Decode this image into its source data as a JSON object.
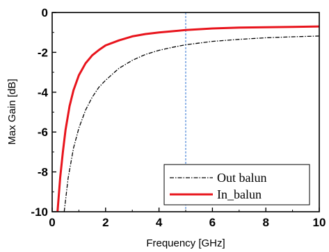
{
  "chart_data": {
    "type": "line",
    "xlabel": "Frequency [GHz]",
    "ylabel": "Max Gain [dB]",
    "xlim": [
      0,
      10
    ],
    "ylim": [
      -10,
      0
    ],
    "xticks": [
      0,
      2,
      4,
      6,
      8,
      10
    ],
    "yticks": [
      0,
      -2,
      -4,
      -6,
      -8,
      -10
    ],
    "xtick_labels": [
      "0",
      "2",
      "4",
      "6",
      "8",
      "10"
    ],
    "ytick_labels": [
      "0",
      "-2",
      "-4",
      "-6",
      "-8",
      "-10"
    ],
    "grid": false,
    "legend_position": "bottom-right",
    "reference_line_x": 5,
    "series": [
      {
        "name": "Out balun",
        "style": "dash-dot",
        "color": "#000000",
        "x": [
          0.45,
          0.6,
          0.8,
          1.0,
          1.25,
          1.5,
          1.75,
          2.0,
          2.5,
          3.0,
          3.5,
          4.0,
          4.5,
          5.0,
          6.0,
          7.0,
          8.0,
          9.0,
          10.0
        ],
        "y": [
          -10.0,
          -8.3,
          -6.8,
          -5.8,
          -4.9,
          -4.25,
          -3.75,
          -3.4,
          -2.8,
          -2.4,
          -2.1,
          -1.9,
          -1.75,
          -1.62,
          -1.45,
          -1.35,
          -1.27,
          -1.22,
          -1.18
        ]
      },
      {
        "name": "In_balun",
        "style": "solid",
        "color": "#e8141c",
        "x": [
          0.2,
          0.3,
          0.4,
          0.5,
          0.65,
          0.8,
          1.0,
          1.25,
          1.5,
          1.75,
          2.0,
          2.5,
          3.0,
          3.5,
          4.0,
          5.0,
          6.0,
          7.0,
          8.0,
          9.0,
          10.0
        ],
        "y": [
          -10.0,
          -8.3,
          -7.0,
          -5.9,
          -4.7,
          -3.9,
          -3.15,
          -2.55,
          -2.15,
          -1.88,
          -1.65,
          -1.4,
          -1.2,
          -1.08,
          -1.0,
          -0.88,
          -0.8,
          -0.76,
          -0.74,
          -0.72,
          -0.7
        ]
      }
    ]
  }
}
